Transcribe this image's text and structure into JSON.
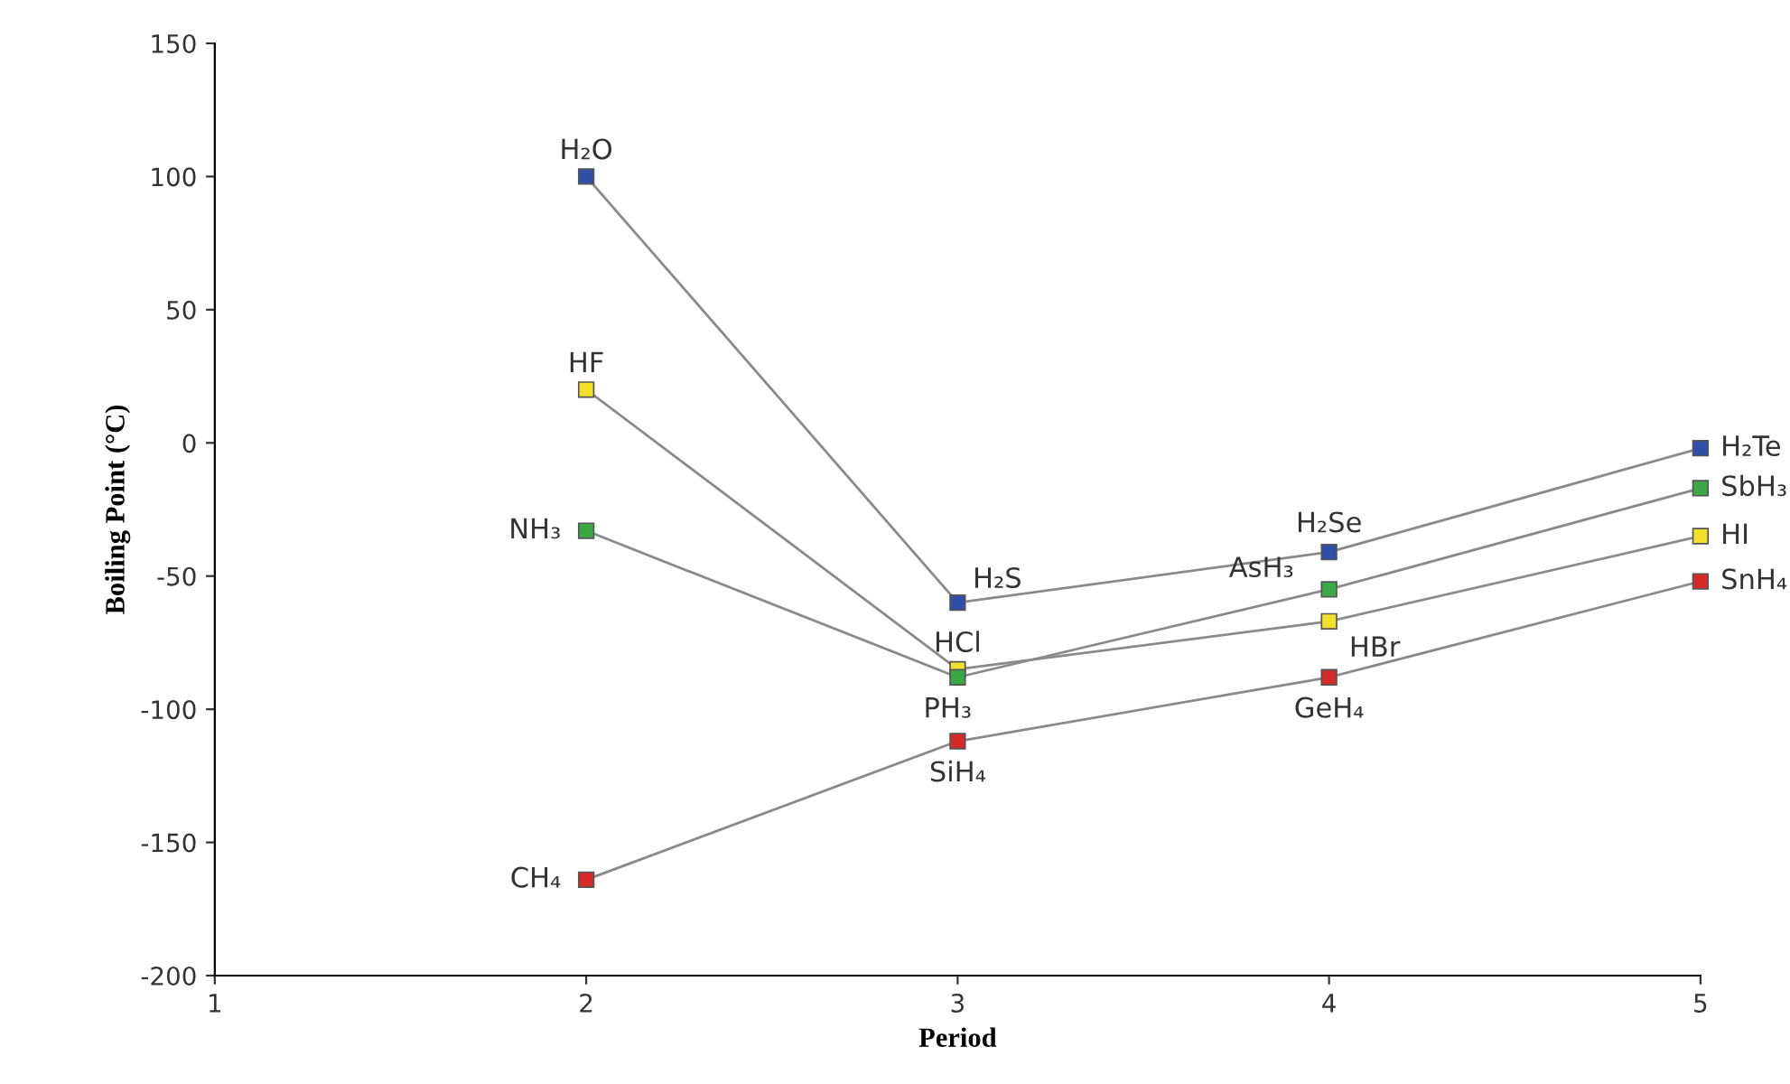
{
  "chart_data": {
    "type": "line",
    "xlabel": "Period",
    "ylabel": "Boiling Point (°C)",
    "x": [
      2,
      3,
      4,
      5
    ],
    "series": [
      {
        "color": "#2f4fa8",
        "values": [
          100,
          -60,
          -41,
          -2
        ]
      },
      {
        "color": "#f2e02a",
        "values": [
          20,
          -85,
          -67,
          -35
        ]
      },
      {
        "color": "#3aa845",
        "values": [
          -33,
          -88,
          -55,
          -17
        ]
      },
      {
        "color": "#d42a2a",
        "values": [
          -164,
          -112,
          -88,
          -52
        ]
      }
    ],
    "xlim": [
      1,
      5
    ],
    "xticks": [
      1,
      2,
      3,
      4,
      5
    ],
    "ylim": [
      -200,
      150
    ],
    "yticks": [
      -200,
      -150,
      -100,
      -50,
      0,
      50,
      100,
      150
    ],
    "grid": false,
    "legend": false,
    "marker": "square",
    "line_style": "solid",
    "annotations": [
      {
        "text": "H₂O",
        "x": 2,
        "y": 100
      },
      {
        "text": "HF",
        "x": 2,
        "y": 20
      },
      {
        "text": "NH₃",
        "x": 2,
        "y": -33
      },
      {
        "text": "CH₄",
        "x": 2,
        "y": -164
      },
      {
        "text": "H₂S",
        "x": 3,
        "y": -60
      },
      {
        "text": "HCl",
        "x": 3,
        "y": -85
      },
      {
        "text": "PH₃",
        "x": 3,
        "y": -88
      },
      {
        "text": "SiH₄",
        "x": 3,
        "y": -112
      },
      {
        "text": "H₂Se",
        "x": 4,
        "y": -41
      },
      {
        "text": "AsH₃",
        "x": 4,
        "y": -55
      },
      {
        "text": "HBr",
        "x": 4,
        "y": -67
      },
      {
        "text": "GeH₄",
        "x": 4,
        "y": -88
      },
      {
        "text": "H₂Te",
        "x": 5,
        "y": -2
      },
      {
        "text": "SbH₃",
        "x": 5,
        "y": -17
      },
      {
        "text": "HI",
        "x": 5,
        "y": -35
      },
      {
        "text": "SnH₄",
        "x": 5,
        "y": -52
      }
    ]
  }
}
